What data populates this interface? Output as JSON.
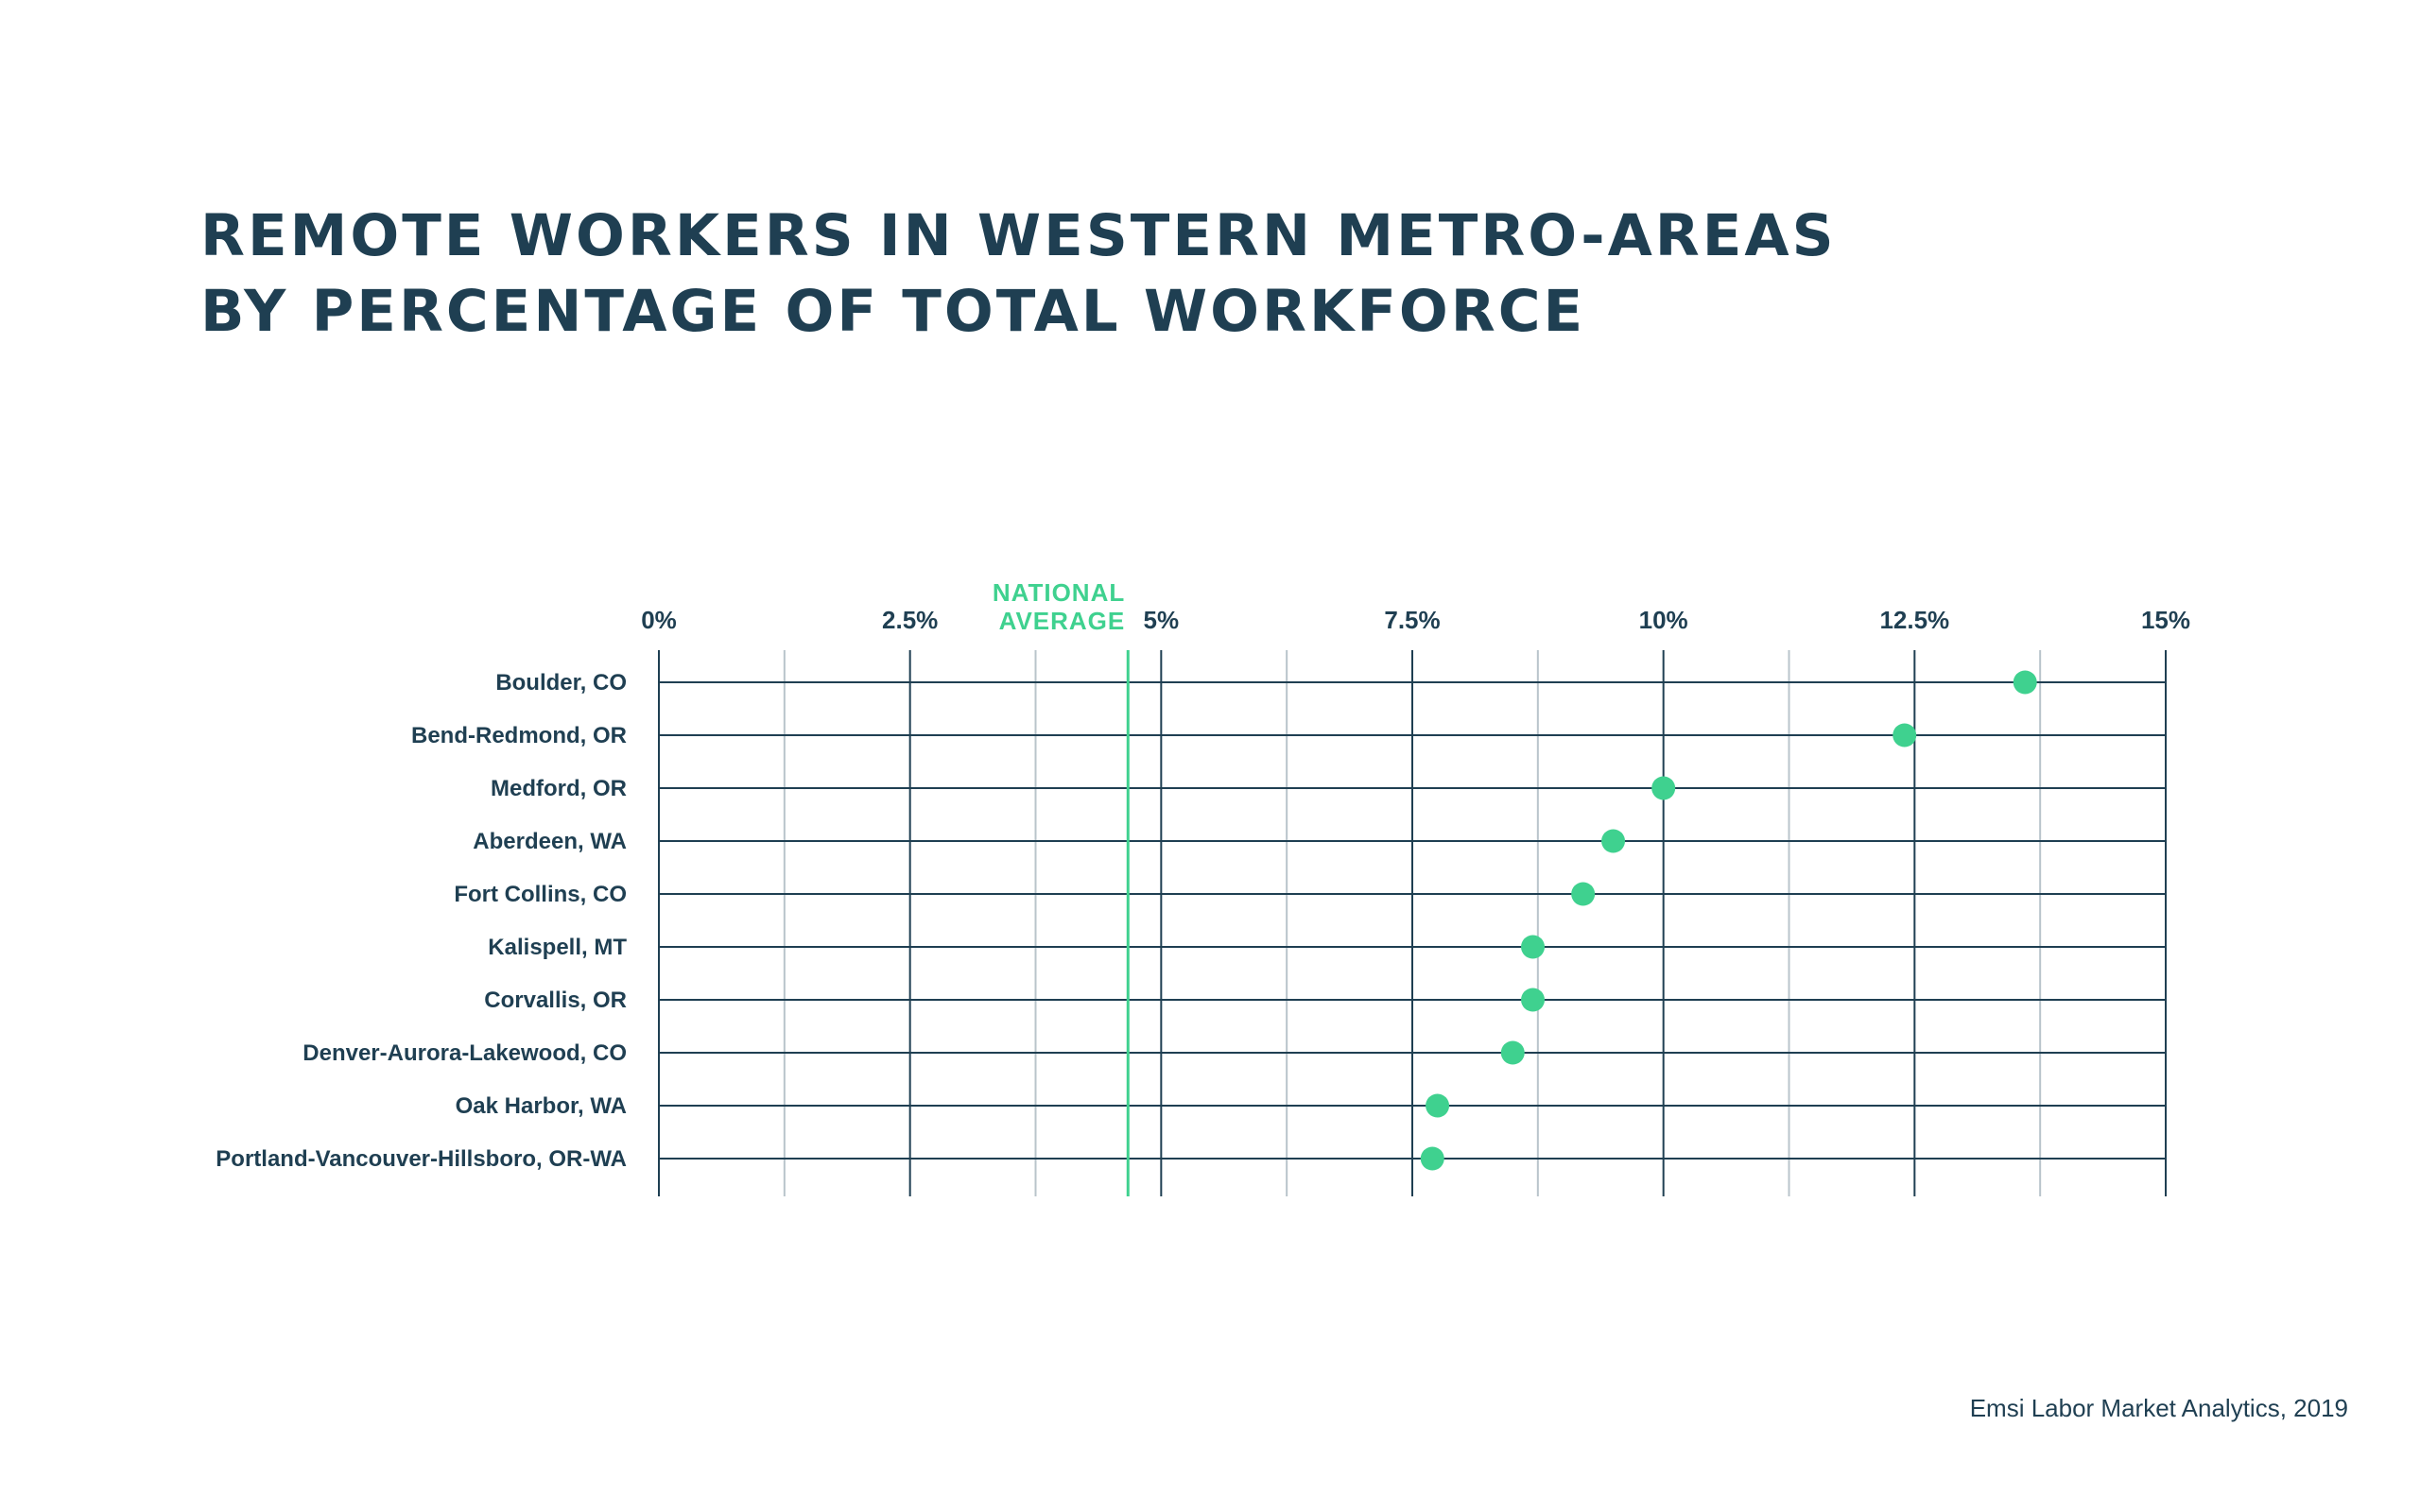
{
  "title": {
    "line1": "REMOTE WORKERS IN WESTERN METRO-AREAS",
    "line2": "BY PERCENTAGE OF TOTAL WORKFORCE"
  },
  "source": "Emsi Labor Market Analytics, 2019",
  "colors": {
    "text": "#1f3f52",
    "accent": "#3fd18f",
    "grid_major": "#1f3f52",
    "grid_minor": "#b9c4cb"
  },
  "chart_data": {
    "type": "scatter",
    "orientation": "horizontal",
    "title": "REMOTE WORKERS IN WESTERN METRO-AREAS BY PERCENTAGE OF TOTAL WORKFORCE",
    "xlabel": "",
    "ylabel": "",
    "xlim": [
      0,
      15
    ],
    "x_axis_position": "top",
    "xticks": [
      0,
      2.5,
      5,
      7.5,
      10,
      12.5,
      15
    ],
    "xtick_labels": [
      "0%",
      "2.5%",
      "5%",
      "7.5%",
      "10%",
      "12.5%",
      "15%"
    ],
    "minor_gridlines": [
      1.25,
      3.75,
      6.25,
      8.75,
      11.25,
      13.75
    ],
    "grid": true,
    "reference_line": {
      "value": 4.67,
      "label_lines": [
        "NATIONAL",
        "AVERAGE"
      ]
    },
    "categories": [
      "Boulder, CO",
      "Bend-Redmond, OR",
      "Medford, OR",
      "Aberdeen, WA",
      "Fort Collins, CO",
      "Kalispell, MT",
      "Corvallis, OR",
      "Denver-Aurora-Lakewood, CO",
      "Oak Harbor, WA",
      "Portland-Vancouver-Hillsboro, OR-WA"
    ],
    "values": [
      13.6,
      12.4,
      10.0,
      9.5,
      9.2,
      8.7,
      8.7,
      8.5,
      7.75,
      7.7
    ]
  }
}
